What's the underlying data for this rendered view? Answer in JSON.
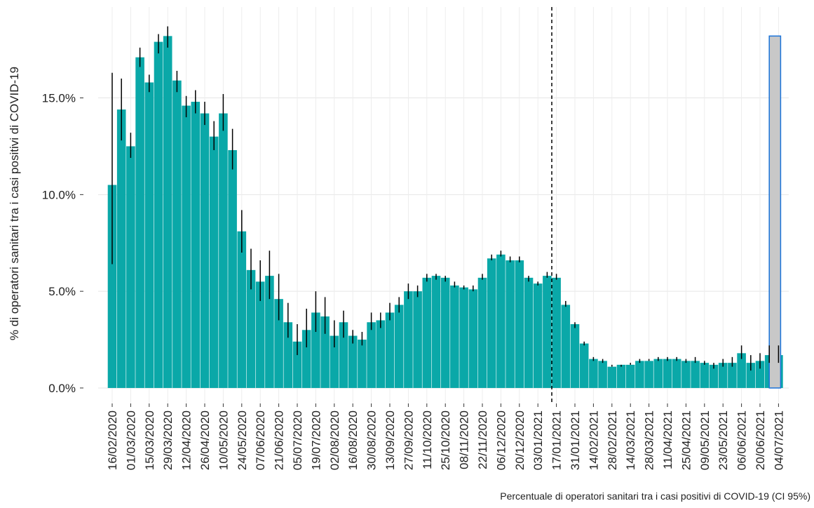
{
  "chart_data": {
    "type": "bar",
    "ylabel": "% di operatori sanitari tra i casi positivi di COVID-19",
    "caption": "Percentuale di operatori sanitari tra i casi positivi di COVID-19 (CI 95%)",
    "categories": [
      "16/02/2020",
      null,
      "01/03/2020",
      null,
      "15/03/2020",
      null,
      "29/03/2020",
      null,
      "12/04/2020",
      null,
      "26/04/2020",
      null,
      "10/05/2020",
      null,
      "24/05/2020",
      null,
      "07/06/2020",
      null,
      "21/06/2020",
      null,
      "05/07/2020",
      null,
      "19/07/2020",
      null,
      "02/08/2020",
      null,
      "16/08/2020",
      null,
      "30/08/2020",
      null,
      "13/09/2020",
      null,
      "27/09/2020",
      null,
      "11/10/2020",
      null,
      "25/10/2020",
      null,
      "08/11/2020",
      null,
      "22/11/2020",
      null,
      "06/12/2020",
      null,
      "20/12/2020",
      null,
      "03/01/2021",
      null,
      "17/01/2021",
      null,
      "31/01/2021",
      null,
      "14/02/2021",
      null,
      "28/02/2021",
      null,
      "14/03/2021",
      null,
      "28/03/2021",
      null,
      "11/04/2021",
      null,
      "25/04/2021",
      null,
      "09/05/2021",
      null,
      "23/05/2021",
      null,
      "06/06/2021",
      null,
      "20/06/2021",
      null,
      "04/07/2021"
    ],
    "values": [
      10.5,
      14.4,
      12.5,
      17.1,
      15.8,
      17.9,
      18.2,
      15.9,
      14.6,
      14.8,
      14.2,
      13.0,
      14.2,
      12.3,
      8.1,
      6.1,
      5.5,
      5.8,
      4.6,
      3.4,
      2.4,
      3.0,
      3.9,
      3.7,
      2.7,
      3.4,
      2.7,
      2.5,
      3.4,
      3.5,
      3.9,
      4.3,
      5.0,
      5.0,
      5.7,
      5.8,
      5.7,
      5.3,
      5.2,
      5.1,
      5.7,
      6.7,
      6.9,
      6.6,
      6.6,
      5.7,
      5.4,
      5.8,
      5.7,
      4.3,
      3.3,
      2.3,
      1.5,
      1.4,
      1.1,
      1.2,
      1.2,
      1.4,
      1.4,
      1.5,
      1.5,
      1.5,
      1.4,
      1.4,
      1.3,
      1.2,
      1.3,
      1.3,
      1.8,
      1.3,
      1.4,
      1.7,
      1.7
    ],
    "lower": [
      6.4,
      12.8,
      11.9,
      16.6,
      15.3,
      17.3,
      17.6,
      15.3,
      14.0,
      14.2,
      13.6,
      12.3,
      13.3,
      11.3,
      7.0,
      5.1,
      4.5,
      4.6,
      3.5,
      2.6,
      1.7,
      2.1,
      2.9,
      2.8,
      2.1,
      2.6,
      2.3,
      2.2,
      3.0,
      3.1,
      3.5,
      3.9,
      4.6,
      4.7,
      5.5,
      5.6,
      5.5,
      5.2,
      5.1,
      5.0,
      5.6,
      6.6,
      6.8,
      6.5,
      6.5,
      5.5,
      5.3,
      5.7,
      5.6,
      4.2,
      3.1,
      2.2,
      1.4,
      1.3,
      1.1,
      1.1,
      1.2,
      1.3,
      1.4,
      1.4,
      1.4,
      1.4,
      1.3,
      1.3,
      1.2,
      1.0,
      1.1,
      1.1,
      1.5,
      0.9,
      1.0,
      1.3,
      1.3
    ],
    "upper": [
      16.3,
      16.0,
      13.2,
      17.6,
      16.2,
      18.3,
      18.7,
      16.4,
      15.1,
      15.4,
      14.8,
      13.8,
      15.2,
      13.4,
      9.2,
      7.2,
      6.6,
      7.1,
      5.9,
      4.4,
      3.3,
      4.1,
      5.0,
      4.7,
      3.5,
      4.0,
      3.0,
      2.9,
      3.9,
      3.9,
      4.4,
      4.7,
      5.4,
      5.3,
      5.9,
      5.9,
      5.8,
      5.5,
      5.3,
      5.3,
      5.9,
      6.9,
      7.1,
      6.8,
      6.8,
      5.8,
      5.5,
      6.0,
      5.9,
      4.5,
      3.4,
      2.4,
      1.6,
      1.5,
      1.2,
      1.2,
      1.3,
      1.5,
      1.5,
      1.6,
      1.6,
      1.6,
      1.5,
      1.6,
      1.4,
      1.3,
      1.5,
      1.6,
      2.2,
      1.7,
      1.8,
      2.2,
      2.2
    ],
    "color": "#0aa8a8",
    "highlight": {
      "value": 18.2,
      "color": "#c8c8c8",
      "edge": "#1a73d9"
    },
    "vline": 47.5,
    "ylim": [
      -0.8,
      19.7
    ],
    "yticks": [
      {
        "value": 0,
        "label": "0.0%"
      },
      {
        "value": 5,
        "label": "5.0%"
      },
      {
        "value": 10,
        "label": "10.0%"
      },
      {
        "value": 15,
        "label": "15.0%"
      }
    ],
    "grid": true
  }
}
